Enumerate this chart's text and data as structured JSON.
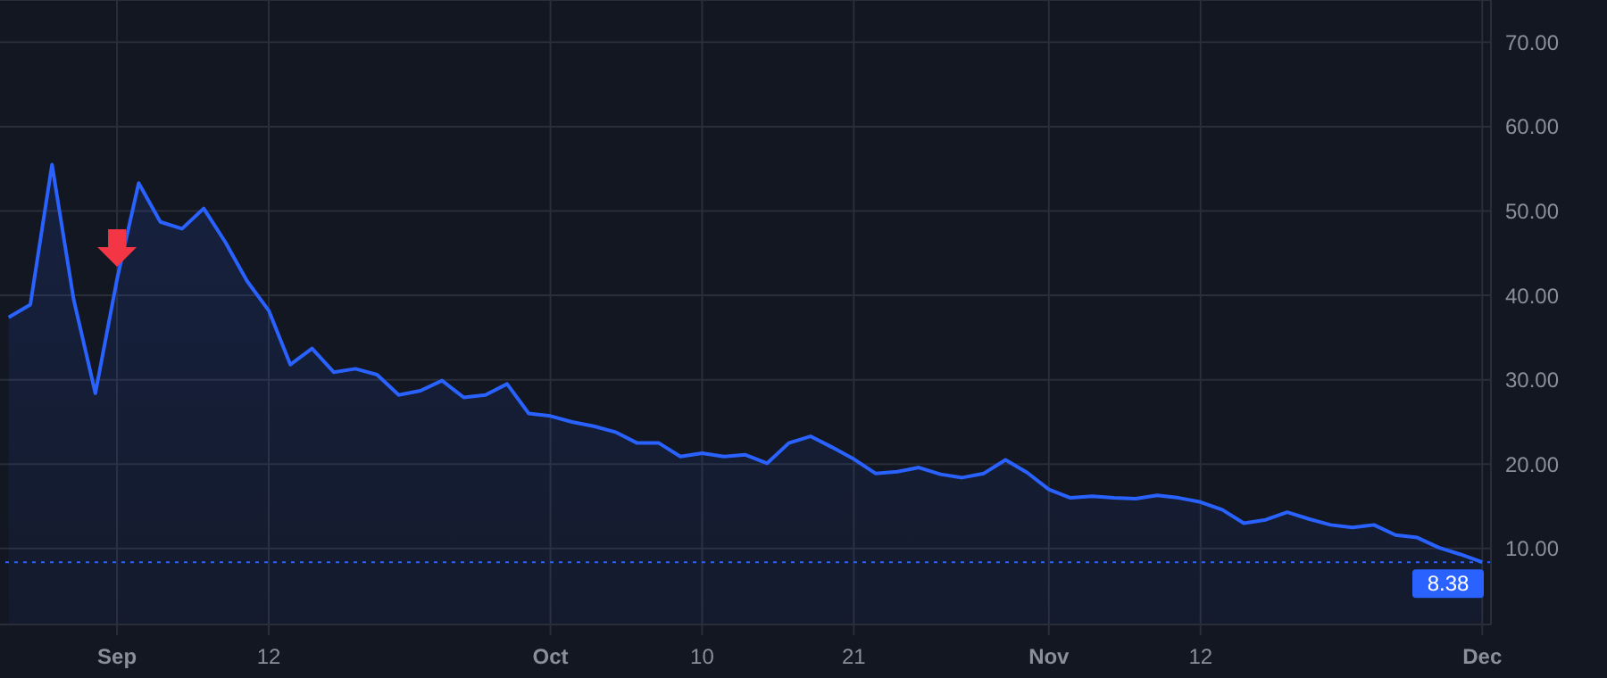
{
  "chart_data": {
    "type": "area",
    "categories": [
      null,
      null,
      null,
      null,
      null,
      "Sep",
      null,
      null,
      null,
      null,
      null,
      null,
      "12",
      null,
      null,
      null,
      null,
      null,
      null,
      null,
      null,
      null,
      null,
      null,
      null,
      "Oct",
      null,
      null,
      null,
      null,
      null,
      null,
      "10",
      null,
      null,
      null,
      null,
      null,
      null,
      "21",
      null,
      null,
      null,
      null,
      null,
      null,
      null,
      null,
      "Nov",
      null,
      null,
      null,
      null,
      null,
      null,
      "12",
      null,
      null,
      null,
      null,
      null,
      null,
      null,
      null,
      null,
      null,
      null,
      null,
      "Dec"
    ],
    "series": [
      {
        "color": "#2962ff",
        "values": [
          37.4,
          38.9,
          55.5,
          39.5,
          28.4,
          41.9,
          53.3,
          48.7,
          47.9,
          50.3,
          46.3,
          41.7,
          38.2,
          31.8,
          33.7,
          30.9,
          31.3,
          30.6,
          28.2,
          28.7,
          29.9,
          27.9,
          28.2,
          29.5,
          26.0,
          25.7,
          25.0,
          24.5,
          23.8,
          22.5,
          22.5,
          20.9,
          21.3,
          20.9,
          21.1,
          20.1,
          22.5,
          23.3,
          22.0,
          20.6,
          18.9,
          19.1,
          19.6,
          18.8,
          18.4,
          18.9,
          20.5,
          19.0,
          17.0,
          16.0,
          16.2,
          16.0,
          15.9,
          16.3,
          16.0,
          15.5,
          14.6,
          13.0,
          13.4,
          14.3,
          13.5,
          12.8,
          12.5,
          12.8,
          11.6,
          11.3,
          10.1,
          9.3,
          8.38
        ]
      }
    ],
    "ylim": [
      1,
      75
    ],
    "yticks": [
      {
        "value": 10,
        "label": "10.00"
      },
      {
        "value": 20,
        "label": "20.00"
      },
      {
        "value": 30,
        "label": "30.00"
      },
      {
        "value": 40,
        "label": "40.00"
      },
      {
        "value": 50,
        "label": "50.00"
      },
      {
        "value": 60,
        "label": "60.00"
      },
      {
        "value": 70,
        "label": "70.00"
      }
    ],
    "ref_lines": [
      {
        "axis": "y",
        "value": 8.38,
        "label": "8.38",
        "color": "#2962ff",
        "line_style": "dotted"
      }
    ],
    "grid": true
  }
}
